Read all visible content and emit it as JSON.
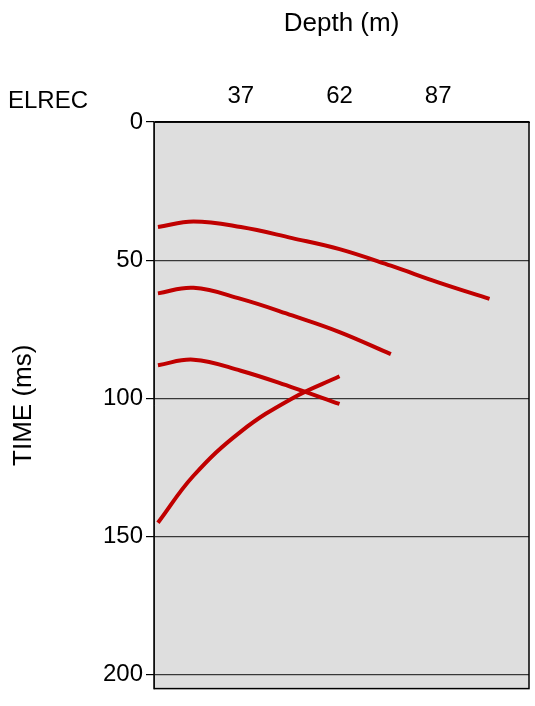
{
  "chart_data": {
    "type": "line",
    "corner_label": "ELREC",
    "x_label": "Depth (m)",
    "y_label": "TIME (ms)",
    "x": [
      16,
      25,
      37,
      50,
      62,
      75,
      87,
      100
    ],
    "series": [
      {
        "color": "#c00000",
        "values": [
          38,
          36,
          38,
          42,
          46,
          52,
          58,
          64
        ]
      },
      {
        "color": "#c00000",
        "values": [
          62,
          60,
          64,
          70,
          76,
          84,
          null,
          null
        ]
      },
      {
        "color": "#c00000",
        "values": [
          88,
          86,
          90,
          96,
          102,
          null,
          null,
          null
        ]
      },
      {
        "color": "#c00000",
        "values": [
          145,
          128,
          112,
          100,
          92,
          null,
          null,
          null
        ]
      }
    ],
    "xlim": [
      15,
      110
    ],
    "xticks": [
      37,
      62,
      87
    ],
    "ylim": [
      0,
      205
    ],
    "yticks": [
      0,
      50,
      100,
      150,
      200
    ],
    "grid": true
  }
}
